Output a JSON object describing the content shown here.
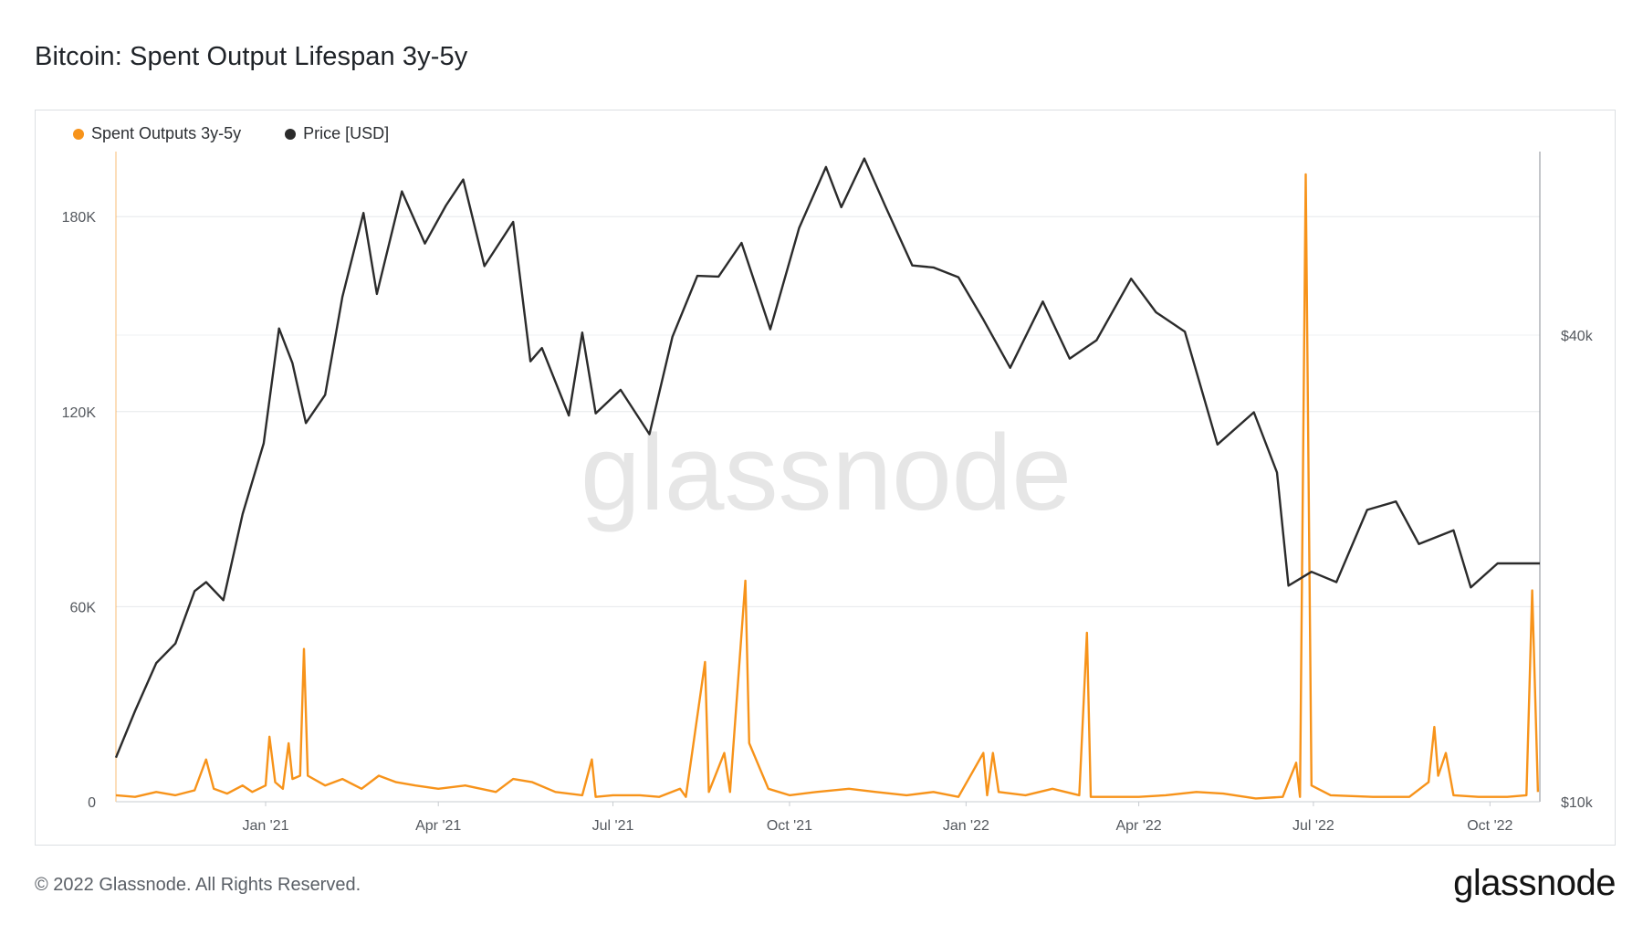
{
  "title": "Bitcoin: Spent Output Lifespan 3y-5y",
  "footer": {
    "copyright": "© 2022 Glassnode. All Rights Reserved.",
    "logo": "glassnode"
  },
  "watermark": "glassnode",
  "colors": {
    "spent": "#f7931a",
    "price": "#2b2b2b",
    "grid": "#e6e8eb"
  },
  "chart_data": {
    "type": "line",
    "legend": [
      {
        "name": "Spent Outputs 3y-5y",
        "color": "#f7931a"
      },
      {
        "name": "Price [USD]",
        "color": "#2b2b2b"
      }
    ],
    "legend_position": "top-left",
    "grid": true,
    "x_range": [
      "2020-10-15",
      "2022-10-27"
    ],
    "x_ticks": [
      {
        "label": "Jan '21",
        "date": "2021-01-01"
      },
      {
        "label": "Apr '21",
        "date": "2021-04-01"
      },
      {
        "label": "Jul '21",
        "date": "2021-07-01"
      },
      {
        "label": "Oct '21",
        "date": "2021-10-01"
      },
      {
        "label": "Jan '22",
        "date": "2022-01-01"
      },
      {
        "label": "Apr '22",
        "date": "2022-04-01"
      },
      {
        "label": "Jul '22",
        "date": "2022-07-01"
      },
      {
        "label": "Oct '22",
        "date": "2022-10-01"
      }
    ],
    "y_left": {
      "ticks": [
        "0",
        "60K",
        "120K",
        "180K"
      ],
      "tick_values": [
        0,
        60000,
        120000,
        180000
      ],
      "range": [
        0,
        200000
      ]
    },
    "y_right": {
      "scale": "log",
      "ticks": [
        "$10k",
        "$40k"
      ],
      "tick_values": [
        10000,
        40000
      ],
      "range": [
        10000,
        69000
      ]
    },
    "series": [
      {
        "name": "Spent Outputs 3y-5y",
        "axis": "left",
        "points": [
          [
            "2020-10-15",
            2000
          ],
          [
            "2020-10-25",
            1500
          ],
          [
            "2020-11-05",
            3000
          ],
          [
            "2020-11-15",
            2000
          ],
          [
            "2020-11-25",
            3500
          ],
          [
            "2020-12-01",
            13000
          ],
          [
            "2020-12-05",
            4000
          ],
          [
            "2020-12-12",
            2500
          ],
          [
            "2020-12-20",
            5000
          ],
          [
            "2020-12-25",
            3000
          ],
          [
            "2021-01-01",
            5000
          ],
          [
            "2021-01-03",
            20000
          ],
          [
            "2021-01-06",
            6000
          ],
          [
            "2021-01-10",
            4000
          ],
          [
            "2021-01-13",
            18000
          ],
          [
            "2021-01-15",
            7000
          ],
          [
            "2021-01-19",
            8000
          ],
          [
            "2021-01-21",
            47000
          ],
          [
            "2021-01-23",
            8000
          ],
          [
            "2021-02-01",
            5000
          ],
          [
            "2021-02-10",
            7000
          ],
          [
            "2021-02-20",
            4000
          ],
          [
            "2021-03-01",
            8000
          ],
          [
            "2021-03-10",
            6000
          ],
          [
            "2021-03-20",
            5000
          ],
          [
            "2021-04-01",
            4000
          ],
          [
            "2021-04-15",
            5000
          ],
          [
            "2021-05-01",
            3000
          ],
          [
            "2021-05-10",
            7000
          ],
          [
            "2021-05-20",
            6000
          ],
          [
            "2021-06-01",
            3000
          ],
          [
            "2021-06-15",
            2000
          ],
          [
            "2021-06-20",
            13000
          ],
          [
            "2021-06-22",
            1500
          ],
          [
            "2021-07-01",
            2000
          ],
          [
            "2021-07-15",
            2000
          ],
          [
            "2021-07-25",
            1500
          ],
          [
            "2021-08-05",
            4000
          ],
          [
            "2021-08-08",
            1500
          ],
          [
            "2021-08-18",
            43000
          ],
          [
            "2021-08-20",
            3000
          ],
          [
            "2021-08-28",
            15000
          ],
          [
            "2021-08-31",
            3000
          ],
          [
            "2021-09-08",
            68000
          ],
          [
            "2021-09-10",
            18000
          ],
          [
            "2021-09-20",
            4000
          ],
          [
            "2021-10-01",
            2000
          ],
          [
            "2021-10-15",
            3000
          ],
          [
            "2021-11-01",
            4000
          ],
          [
            "2021-11-15",
            3000
          ],
          [
            "2021-12-01",
            2000
          ],
          [
            "2021-12-15",
            3000
          ],
          [
            "2021-12-28",
            1500
          ],
          [
            "2022-01-10",
            15000
          ],
          [
            "2022-01-12",
            2000
          ],
          [
            "2022-01-15",
            15000
          ],
          [
            "2022-01-18",
            3000
          ],
          [
            "2022-02-01",
            2000
          ],
          [
            "2022-02-15",
            4000
          ],
          [
            "2022-03-01",
            2000
          ],
          [
            "2022-03-05",
            52000
          ],
          [
            "2022-03-07",
            1500
          ],
          [
            "2022-04-01",
            1500
          ],
          [
            "2022-04-15",
            2000
          ],
          [
            "2022-05-01",
            3000
          ],
          [
            "2022-05-15",
            2500
          ],
          [
            "2022-06-01",
            1000
          ],
          [
            "2022-06-15",
            1500
          ],
          [
            "2022-06-22",
            12000
          ],
          [
            "2022-06-24",
            1500
          ],
          [
            "2022-06-27",
            193000
          ],
          [
            "2022-06-30",
            5000
          ],
          [
            "2022-07-10",
            2000
          ],
          [
            "2022-08-01",
            1500
          ],
          [
            "2022-08-20",
            1500
          ],
          [
            "2022-08-30",
            6000
          ],
          [
            "2022-09-02",
            23000
          ],
          [
            "2022-09-04",
            8000
          ],
          [
            "2022-09-08",
            15000
          ],
          [
            "2022-09-12",
            2000
          ],
          [
            "2022-09-25",
            1500
          ],
          [
            "2022-10-10",
            1500
          ],
          [
            "2022-10-20",
            2000
          ],
          [
            "2022-10-23",
            65000
          ],
          [
            "2022-10-26",
            3000
          ]
        ]
      },
      {
        "name": "Price [USD]",
        "axis": "right",
        "points": [
          [
            "2020-10-15",
            11400
          ],
          [
            "2020-10-25",
            13100
          ],
          [
            "2020-11-05",
            15100
          ],
          [
            "2020-11-15",
            16000
          ],
          [
            "2020-11-25",
            18700
          ],
          [
            "2020-12-01",
            19200
          ],
          [
            "2020-12-10",
            18200
          ],
          [
            "2020-12-20",
            23500
          ],
          [
            "2020-12-31",
            29000
          ],
          [
            "2021-01-08",
            40800
          ],
          [
            "2021-01-15",
            36800
          ],
          [
            "2021-01-22",
            30800
          ],
          [
            "2021-02-01",
            33500
          ],
          [
            "2021-02-10",
            44800
          ],
          [
            "2021-02-21",
            57500
          ],
          [
            "2021-02-28",
            45200
          ],
          [
            "2021-03-13",
            61300
          ],
          [
            "2021-03-25",
            52500
          ],
          [
            "2021-04-05",
            58800
          ],
          [
            "2021-04-14",
            63500
          ],
          [
            "2021-04-25",
            49100
          ],
          [
            "2021-05-10",
            56000
          ],
          [
            "2021-05-19",
            37000
          ],
          [
            "2021-05-25",
            38500
          ],
          [
            "2021-06-08",
            31500
          ],
          [
            "2021-06-15",
            40300
          ],
          [
            "2021-06-22",
            31700
          ],
          [
            "2021-07-05",
            34000
          ],
          [
            "2021-07-20",
            29800
          ],
          [
            "2021-08-01",
            39800
          ],
          [
            "2021-08-14",
            47700
          ],
          [
            "2021-08-25",
            47600
          ],
          [
            "2021-09-06",
            52600
          ],
          [
            "2021-09-21",
            40700
          ],
          [
            "2021-10-06",
            55000
          ],
          [
            "2021-10-20",
            65900
          ],
          [
            "2021-10-28",
            58500
          ],
          [
            "2021-11-09",
            67600
          ],
          [
            "2021-11-20",
            58600
          ],
          [
            "2021-12-04",
            49200
          ],
          [
            "2021-12-15",
            48900
          ],
          [
            "2021-12-28",
            47500
          ],
          [
            "2022-01-10",
            41900
          ],
          [
            "2022-01-24",
            36300
          ],
          [
            "2022-02-10",
            44200
          ],
          [
            "2022-02-24",
            37300
          ],
          [
            "2022-03-10",
            39400
          ],
          [
            "2022-03-28",
            47300
          ],
          [
            "2022-04-10",
            42800
          ],
          [
            "2022-04-25",
            40400
          ],
          [
            "2022-05-12",
            28900
          ],
          [
            "2022-05-31",
            31800
          ],
          [
            "2022-06-12",
            26600
          ],
          [
            "2022-06-18",
            19000
          ],
          [
            "2022-06-30",
            19800
          ],
          [
            "2022-07-13",
            19200
          ],
          [
            "2022-07-29",
            23800
          ],
          [
            "2022-08-13",
            24400
          ],
          [
            "2022-08-25",
            21500
          ],
          [
            "2022-09-12",
            22400
          ],
          [
            "2022-09-21",
            18900
          ],
          [
            "2022-10-05",
            20300
          ],
          [
            "2022-10-27",
            20300
          ]
        ]
      }
    ]
  }
}
